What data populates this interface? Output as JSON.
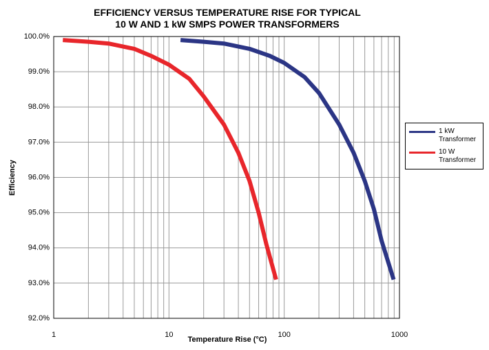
{
  "chart_data": {
    "type": "line",
    "title": "EFFICIENCY VERSUS TEMPERATURE RISE FOR TYPICAL\n10 W AND 1 kW SMPS POWER TRANSFORMERS",
    "xlabel": "Temperature Rise (°C)",
    "ylabel": "Efficiency",
    "xscale": "log",
    "xlim": [
      1,
      1000
    ],
    "xticks": [
      1,
      10,
      100,
      1000
    ],
    "ylim": [
      92,
      100
    ],
    "yticks": [
      {
        "value": 92,
        "label": "92.0%"
      },
      {
        "value": 93,
        "label": "93.0%"
      },
      {
        "value": 94,
        "label": "94.0%"
      },
      {
        "value": 95,
        "label": "95.0%"
      },
      {
        "value": 96,
        "label": "96.0%"
      },
      {
        "value": 97,
        "label": "97.0%"
      },
      {
        "value": 98,
        "label": "98.0%"
      },
      {
        "value": 99,
        "label": "99.0%"
      },
      {
        "value": 100,
        "label": "100.0%"
      }
    ],
    "grid": true,
    "minor_grid": true,
    "legend": "right",
    "series": [
      {
        "name": "1 kW\nTransformer",
        "color": "#2b3585",
        "x": [
          12.6,
          20,
          30,
          50,
          75,
          100,
          150,
          200,
          300,
          400,
          500,
          600,
          700,
          890
        ],
        "values": [
          99.9,
          99.85,
          99.8,
          99.65,
          99.45,
          99.25,
          98.85,
          98.4,
          97.5,
          96.7,
          95.9,
          95.1,
          94.2,
          93.1
        ]
      },
      {
        "name": "10 W\nTransformer",
        "color": "#e8262b",
        "x": [
          1.2,
          2,
          3,
          5,
          7,
          10,
          15,
          20,
          30,
          40,
          50,
          60,
          70,
          85
        ],
        "values": [
          99.9,
          99.85,
          99.8,
          99.65,
          99.45,
          99.2,
          98.8,
          98.3,
          97.5,
          96.7,
          95.9,
          95.0,
          94.1,
          93.1
        ]
      }
    ]
  }
}
